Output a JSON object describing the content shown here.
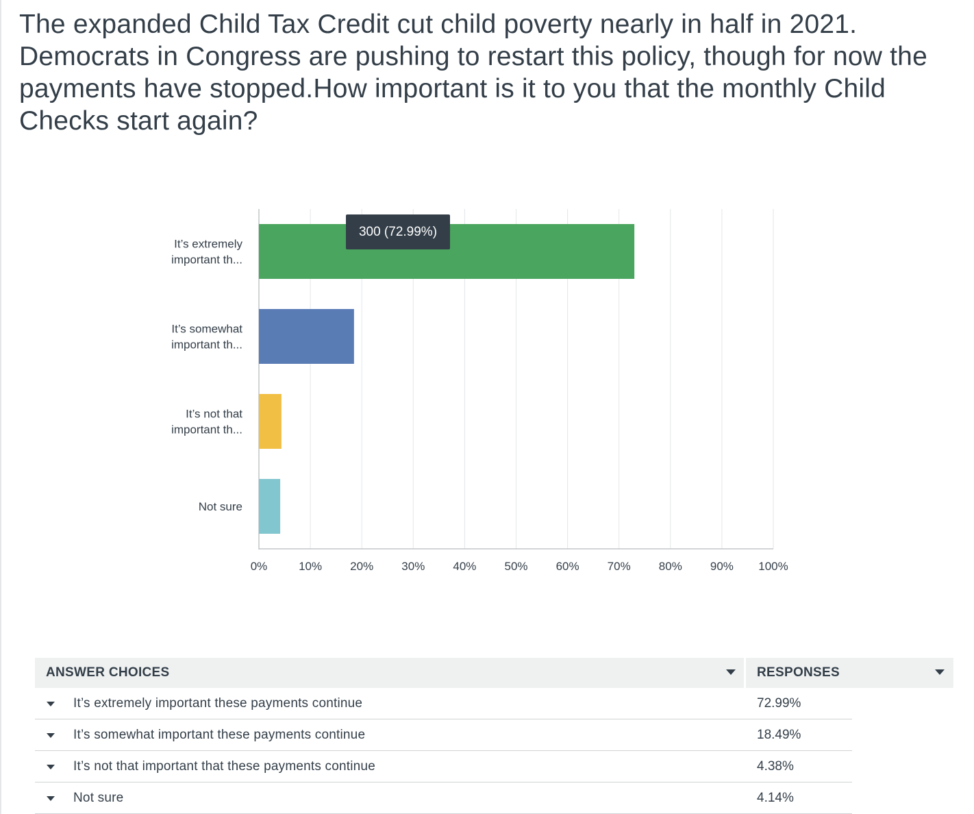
{
  "question": "The expanded Child Tax Credit cut child poverty nearly in half in 2021. Democrats in Congress are pushing to restart this policy, though for now the payments have stopped.How important is it to you that the monthly Child Checks start again?",
  "tooltip": "300 (72.99%)",
  "table": {
    "header_choices": "ANSWER CHOICES",
    "header_responses": "RESPONSES",
    "rows": [
      {
        "label": "It’s extremely important these payments continue",
        "value": "72.99%"
      },
      {
        "label": "It’s somewhat important these payments continue",
        "value": "18.49%"
      },
      {
        "label": "It’s not that important that these payments continue",
        "value": "4.38%"
      },
      {
        "label": "Not sure",
        "value": "4.14%"
      }
    ]
  },
  "chart_data": {
    "type": "bar",
    "orientation": "horizontal",
    "title": "",
    "xlabel": "",
    "ylabel": "",
    "xlim": [
      0,
      100
    ],
    "grid": true,
    "category_labels": [
      [
        "It’s extremely",
        "important th..."
      ],
      [
        "It’s somewhat",
        "important th..."
      ],
      [
        "It’s not that",
        "important th..."
      ],
      [
        "Not sure"
      ]
    ],
    "categories": [
      "It’s extremely important th...",
      "It’s somewhat important th...",
      "It’s not that important th...",
      "Not sure"
    ],
    "values": [
      72.99,
      18.49,
      4.38,
      4.14
    ],
    "colors": [
      "#4aa55e",
      "#5a7cb5",
      "#f1bf43",
      "#82c6cf"
    ],
    "ticks": [
      "0%",
      "10%",
      "20%",
      "30%",
      "40%",
      "50%",
      "60%",
      "70%",
      "80%",
      "90%",
      "100%"
    ]
  }
}
